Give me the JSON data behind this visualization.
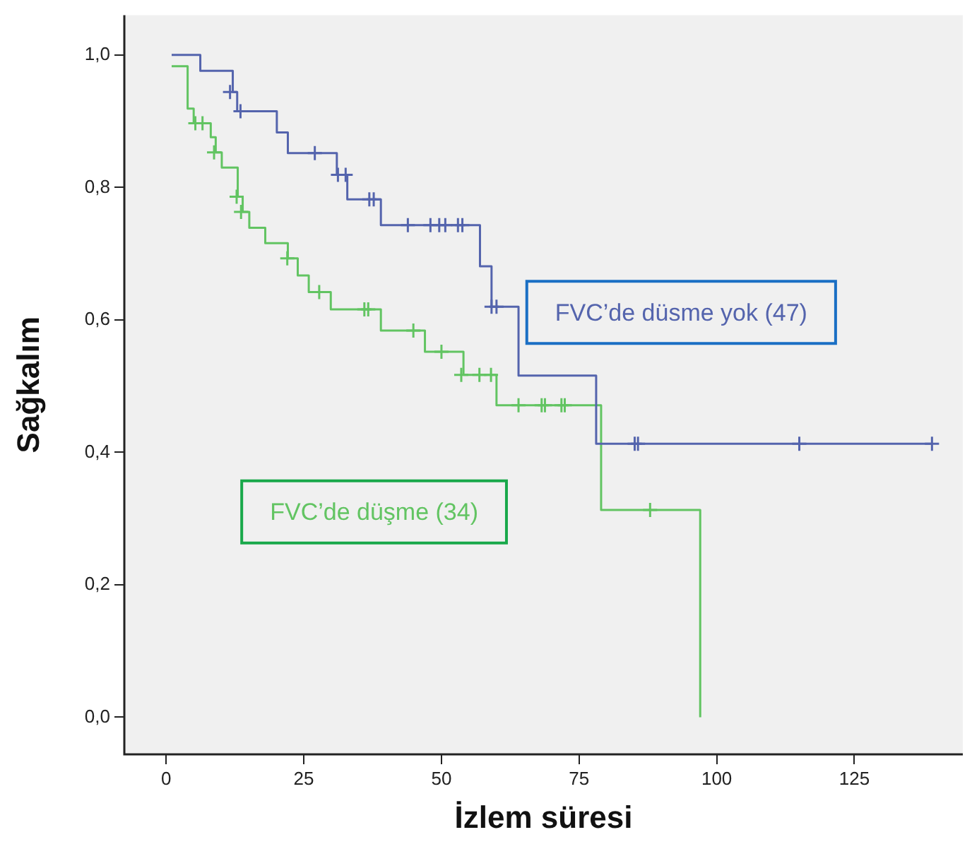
{
  "chart_data": {
    "type": "step",
    "xlabel": "İzlem süresi",
    "ylabel": "Sağkalım",
    "xlim": [
      -7.6,
      144.7
    ],
    "ylim": [
      -0.056,
      1.06
    ],
    "xticks": [
      0,
      25,
      50,
      75,
      100,
      125
    ],
    "yticks": [
      {
        "value": 0,
        "label": "0,0"
      },
      {
        "value": 0.2,
        "label": "0,2"
      },
      {
        "value": 0.4,
        "label": "0,4"
      },
      {
        "value": 0.6,
        "label": "0,6"
      },
      {
        "value": 0.8,
        "label": "0,8"
      },
      {
        "value": 1,
        "label": "1,0"
      }
    ],
    "grid": false,
    "legend": false,
    "line_style": "solid",
    "marker": "none",
    "series": [
      {
        "name": "FVC’de düsme yok (47)",
        "type": "step",
        "color": "#5464ad",
        "x": [
          1,
          6.2,
          12.1,
          12.9,
          20.1,
          22.1,
          31,
          32.9,
          39,
          57,
          59.1,
          64,
          78.1,
          139.1
        ],
        "values": [
          1,
          0.976,
          0.944,
          0.915,
          0.883,
          0.852,
          0.819,
          0.782,
          0.743,
          0.681,
          0.62,
          0.516,
          0.413,
          0.413
        ]
      },
      {
        "name": "FVC’de düşme (34)",
        "type": "step",
        "color": "#62c462",
        "x": [
          1,
          3.9,
          5,
          8.1,
          9,
          10.1,
          13,
          13.9,
          15.1,
          18,
          22.1,
          23.9,
          25.9,
          29.9,
          39,
          47,
          54,
          60,
          79,
          97,
          97
        ],
        "values": [
          0.983,
          0.919,
          0.897,
          0.876,
          0.853,
          0.83,
          0.786,
          0.763,
          0.739,
          0.716,
          0.693,
          0.667,
          0.642,
          0.616,
          0.584,
          0.552,
          0.517,
          0.471,
          0.313,
          0.313,
          0
        ]
      },
      {
        "type": "scatter",
        "marker": "cross",
        "color": "#5464ad",
        "x": [
          11.6,
          13.5,
          27,
          31.2,
          32.6,
          36.9,
          37.7,
          43.9,
          48,
          49.6,
          50.7,
          53,
          53.8,
          59.1,
          60,
          85.1,
          85.7,
          115,
          139.1
        ],
        "values": [
          0.944,
          0.915,
          0.852,
          0.819,
          0.819,
          0.782,
          0.782,
          0.743,
          0.743,
          0.743,
          0.743,
          0.743,
          0.743,
          0.62,
          0.62,
          0.413,
          0.413,
          0.413,
          0.413
        ]
      },
      {
        "type": "scatter",
        "marker": "cross",
        "color": "#62c462",
        "x": [
          5.3,
          6.6,
          8.7,
          12.8,
          13.6,
          22,
          27.8,
          36,
          36.7,
          44.9,
          50,
          53.6,
          56.9,
          59,
          64,
          68.2,
          68.8,
          71.8,
          72.4,
          87.9
        ],
        "values": [
          0.897,
          0.897,
          0.853,
          0.786,
          0.763,
          0.693,
          0.642,
          0.616,
          0.616,
          0.584,
          0.552,
          0.517,
          0.517,
          0.517,
          0.471,
          0.471,
          0.471,
          0.471,
          0.471,
          0.313
        ]
      }
    ]
  }
}
